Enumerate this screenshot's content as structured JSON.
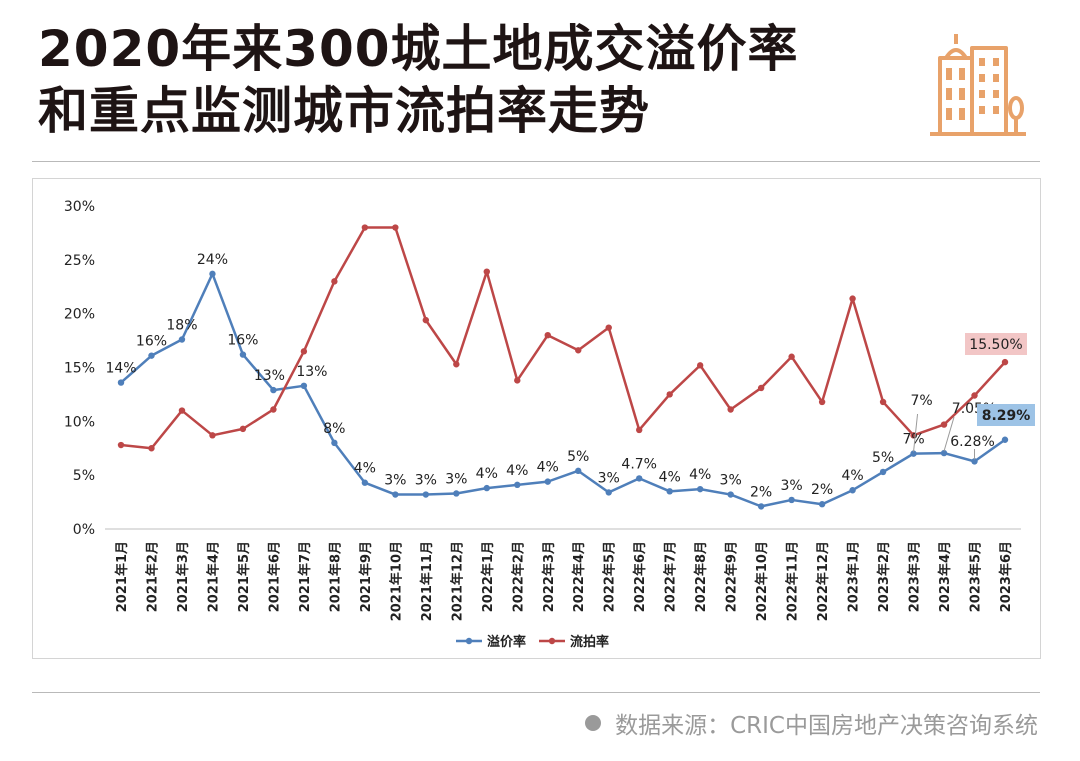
{
  "header": {
    "title_line1": "2020年来300城土地成交溢价率",
    "title_line2": "和重点监测城市流拍率走势",
    "icon": "city-buildings-icon"
  },
  "footer": {
    "source": "数据来源：CRIC中国房地产决策咨询系统"
  },
  "colors": {
    "premium": "#4f7fba",
    "unsold": "#bd4747",
    "premium_label_bg": "#9dc3e6",
    "unsold_label_bg": "#f2c6c6",
    "accent": "#e8a26a"
  },
  "chart_data": {
    "type": "line",
    "categories": [
      "2021年1月",
      "2021年2月",
      "2021年3月",
      "2021年4月",
      "2021年5月",
      "2021年6月",
      "2021年7月",
      "2021年8月",
      "2021年9月",
      "2021年10月",
      "2021年11月",
      "2021年12月",
      "2022年1月",
      "2022年2月",
      "2022年3月",
      "2022年4月",
      "2022年5月",
      "2022年6月",
      "2022年7月",
      "2022年8月",
      "2022年9月",
      "2022年10月",
      "2022年11月",
      "2022年12月",
      "2023年1月",
      "2023年2月",
      "2023年3月",
      "2023年4月",
      "2023年5月",
      "2023年6月"
    ],
    "ylim": [
      0,
      30
    ],
    "yticks": [
      "0%",
      "5%",
      "10%",
      "15%",
      "20%",
      "25%",
      "30%"
    ],
    "legend_position": "bottom",
    "grid": false,
    "series": [
      {
        "name": "溢价率",
        "values": [
          13.6,
          16.1,
          17.6,
          23.7,
          16.2,
          12.9,
          13.3,
          8.0,
          4.3,
          3.2,
          3.2,
          3.3,
          3.8,
          4.1,
          4.4,
          5.4,
          3.4,
          4.7,
          3.5,
          3.7,
          3.2,
          2.1,
          2.7,
          2.3,
          3.6,
          5.3,
          7.0,
          7.05,
          6.28,
          8.29
        ],
        "labels": [
          "14%",
          "16%",
          "18%",
          "24%",
          "16%",
          "13%",
          "13%",
          "8%",
          "4%",
          "3%",
          "3%",
          "3%",
          "4%",
          "4%",
          "4%",
          "5%",
          "3%",
          "4.7%",
          "4%",
          "4%",
          "3%",
          "2%",
          "3%",
          "2%",
          "4%",
          "5%",
          "7%",
          "7.05%",
          "6.28%",
          "8.29%"
        ]
      },
      {
        "name": "流拍率",
        "values": [
          7.8,
          7.5,
          11.0,
          8.7,
          9.3,
          11.1,
          16.5,
          23.0,
          28.0,
          28.0,
          19.4,
          15.3,
          23.9,
          13.8,
          18.0,
          16.6,
          18.7,
          9.2,
          12.5,
          15.2,
          11.1,
          13.1,
          16.0,
          11.8,
          21.4,
          11.8,
          8.7,
          9.7,
          12.4,
          15.5
        ],
        "end_label": "15.50%"
      }
    ]
  }
}
